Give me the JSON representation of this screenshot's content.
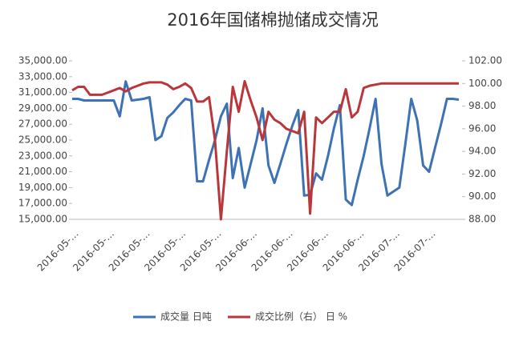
{
  "chart_data": {
    "type": "line",
    "title": "2016年国储棉抛储成交情况",
    "categories": [
      "2016-05-…",
      null,
      null,
      null,
      null,
      null,
      "2016-05-…",
      null,
      null,
      null,
      null,
      null,
      "2016-05-…",
      null,
      null,
      null,
      null,
      null,
      "2016-05-…",
      null,
      null,
      null,
      null,
      null,
      "2016-05-…",
      null,
      null,
      null,
      null,
      null,
      "2016-06-…",
      null,
      null,
      null,
      null,
      null,
      "2016-06-…",
      null,
      null,
      null,
      null,
      null,
      "2016-06-…",
      null,
      null,
      null,
      null,
      null,
      "2016-06-…",
      null,
      null,
      null,
      null,
      null,
      "2016-07-…",
      null,
      null,
      null,
      null,
      null,
      "2016-07-…",
      null,
      null,
      null,
      null,
      null
    ],
    "series": [
      {
        "name": "成交量 日吨",
        "color": "#3d72b4",
        "values": [
          30200,
          30200,
          30000,
          30000,
          30000,
          30000,
          30000,
          30000,
          28000,
          32400,
          30000,
          30100,
          30200,
          30400,
          25000,
          25500,
          27800,
          28500,
          29400,
          30200,
          30000,
          19800,
          19800,
          22500,
          25000,
          28000,
          29600,
          20200,
          24000,
          19000,
          22000,
          25000,
          29000,
          21800,
          19600,
          22000,
          24500,
          26800,
          28800,
          18000,
          18100,
          20800,
          20000,
          23000,
          26500,
          29400,
          17500,
          16800,
          20000,
          23000,
          26500,
          30200,
          22000,
          18000,
          18500,
          19000,
          24500,
          30200,
          27500,
          21800,
          21000,
          24000,
          27000,
          30200,
          30200,
          30100
        ]
      },
      {
        "name": "成交比例（右） 日 %",
        "color": "#b9373a",
        "axis": "y2",
        "values": [
          99.4,
          99.7,
          99.7,
          99.0,
          99.0,
          99.0,
          99.2,
          99.4,
          99.6,
          99.3,
          99.6,
          99.8,
          100.0,
          100.1,
          100.1,
          100.1,
          99.9,
          99.5,
          99.7,
          100.0,
          99.6,
          98.4,
          98.4,
          98.8,
          95.0,
          88.0,
          94.0,
          99.7,
          97.5,
          100.2,
          98.5,
          97.0,
          95.0,
          97.5,
          96.8,
          96.5,
          96.0,
          95.8,
          95.6,
          97.5,
          88.5,
          97.0,
          96.5,
          97.0,
          97.5,
          97.5,
          99.5,
          97.0,
          97.5,
          99.6,
          99.8,
          99.9,
          100.0,
          100.0,
          100.0,
          100.0,
          100.0,
          100.0,
          100.0,
          100.0,
          100.0,
          100.0,
          100.0,
          100.0,
          100.0,
          100.0
        ]
      }
    ],
    "ylim": [
      15000,
      35000
    ],
    "yticks": [
      {
        "value": 15000,
        "label": "15,000.00"
      },
      {
        "value": 17000,
        "label": "17,000.00"
      },
      {
        "value": 19000,
        "label": "19,000.00"
      },
      {
        "value": 21000,
        "label": "21,000.00"
      },
      {
        "value": 23000,
        "label": "23,000.00"
      },
      {
        "value": 25000,
        "label": "25,000.00"
      },
      {
        "value": 27000,
        "label": "27,000.00"
      },
      {
        "value": 29000,
        "label": "29,000.00"
      },
      {
        "value": 31000,
        "label": "31,000.00"
      },
      {
        "value": 33000,
        "label": "33,000.00"
      },
      {
        "value": 35000,
        "label": "35,000.00"
      }
    ],
    "y2lim": [
      88,
      102
    ],
    "y2ticks": [
      {
        "value": 88,
        "label": "88.00"
      },
      {
        "value": 90,
        "label": "90.00"
      },
      {
        "value": 92,
        "label": "92.00"
      },
      {
        "value": 94,
        "label": "94.00"
      },
      {
        "value": 96,
        "label": "96.00"
      },
      {
        "value": 98,
        "label": "98.00"
      },
      {
        "value": 100,
        "label": "100.00"
      },
      {
        "value": 102,
        "label": "102.00"
      }
    ],
    "legend": "bottom"
  }
}
